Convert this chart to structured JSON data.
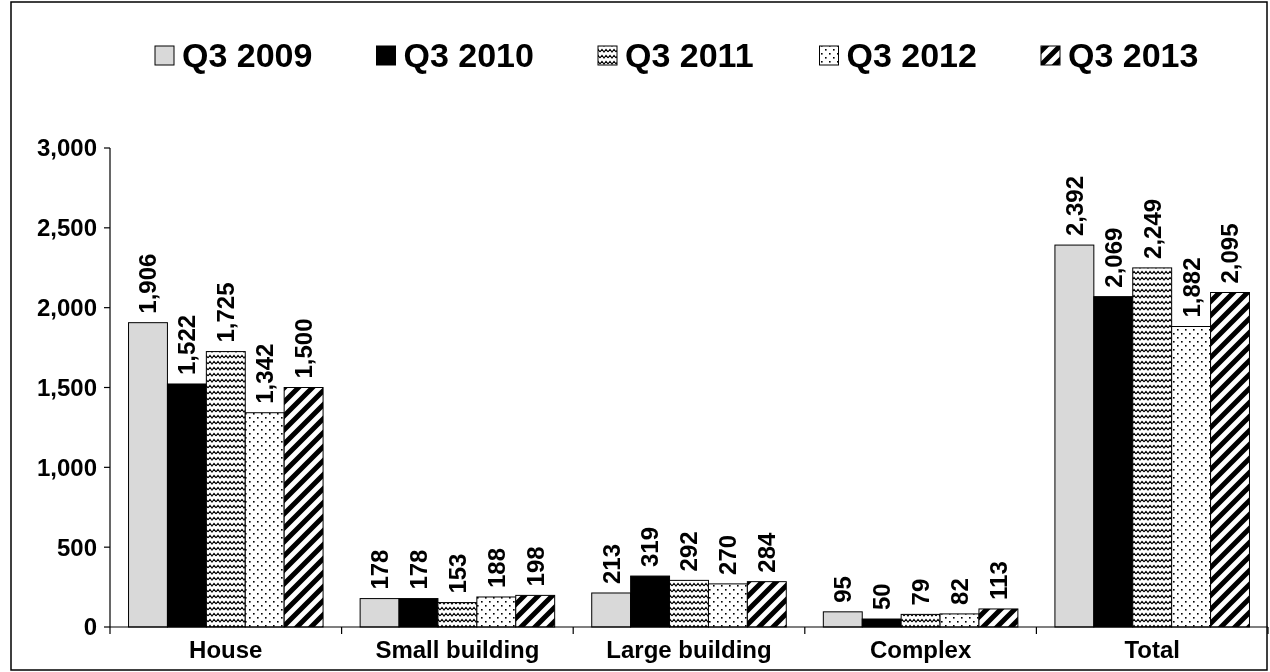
{
  "chart_data": {
    "type": "bar",
    "categories": [
      "House",
      "Small building",
      "Large building",
      "Complex",
      "Total"
    ],
    "series": [
      {
        "name": "Q3 2009",
        "color": "#d9d9d9",
        "values": [
          1906,
          178,
          213,
          95,
          2392
        ],
        "value_labels": [
          "1,906",
          "178",
          "213",
          "95",
          "2,392"
        ]
      },
      {
        "name": "Q3 2010",
        "color": "#000000",
        "values": [
          1522,
          178,
          319,
          50,
          2069
        ],
        "value_labels": [
          "1,522",
          "178",
          "319",
          "50",
          "2,069"
        ]
      },
      {
        "name": "Q3 2011",
        "color": "#000000",
        "values": [
          1725,
          153,
          292,
          79,
          2249
        ],
        "value_labels": [
          "1,725",
          "153",
          "292",
          "79",
          "2,249"
        ]
      },
      {
        "name": "Q3 2012",
        "color": "#000000",
        "values": [
          1342,
          188,
          270,
          82,
          1882
        ],
        "value_labels": [
          "1,342",
          "188",
          "270",
          "82",
          "1,882"
        ]
      },
      {
        "name": "Q3 2013",
        "color": "#000000",
        "values": [
          1500,
          198,
          284,
          113,
          2095
        ],
        "value_labels": [
          "1,500",
          "198",
          "284",
          "113",
          "2,095"
        ]
      }
    ],
    "ylim": [
      0,
      3000
    ],
    "yticks": [
      {
        "value": 0,
        "label": "0"
      },
      {
        "value": 500,
        "label": "500"
      },
      {
        "value": 1000,
        "label": "1,000"
      },
      {
        "value": 1500,
        "label": "1,500"
      },
      {
        "value": 2000,
        "label": "2,000"
      },
      {
        "value": 2500,
        "label": "2,500"
      },
      {
        "value": 3000,
        "label": "3,000"
      }
    ],
    "grid": false,
    "legend": "top"
  }
}
